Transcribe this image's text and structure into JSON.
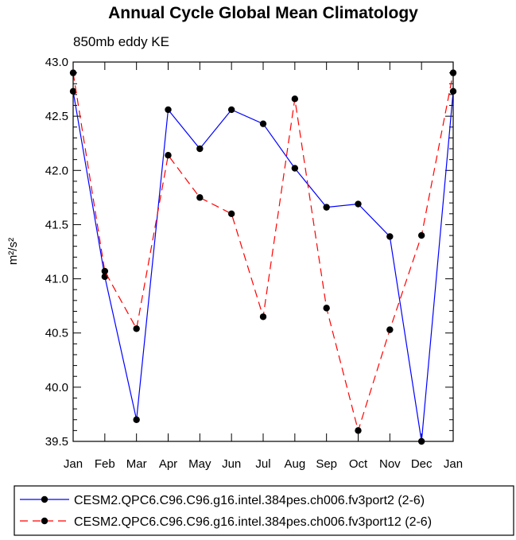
{
  "chart_data": {
    "type": "line",
    "title": "Annual Cycle Global Mean Climatology",
    "subtitle": "850mb eddy KE",
    "ylabel": "m²/s²",
    "xlabel": "",
    "categories": [
      "Jan",
      "Feb",
      "Mar",
      "Apr",
      "May",
      "Jun",
      "Jul",
      "Aug",
      "Sep",
      "Oct",
      "Nov",
      "Dec",
      "Jan"
    ],
    "ylim": [
      39.5,
      43.0
    ],
    "yticks": [
      "39.5",
      "40.0",
      "40.5",
      "41.0",
      "41.5",
      "42.0",
      "42.5",
      "43.0"
    ],
    "grid": false,
    "legend_position": "bottom",
    "series": [
      {
        "name": "CESM2.QPC6.C96.C96.g16.intel.384pes.ch006.fv3port2 (2-6)",
        "color": "#0000ff",
        "style": "solid",
        "values": [
          42.73,
          41.02,
          39.7,
          42.56,
          42.2,
          42.56,
          42.43,
          42.02,
          41.66,
          41.69,
          41.39,
          39.5,
          42.73
        ]
      },
      {
        "name": "CESM2.QPC6.C96.C96.g16.intel.384pes.ch006.fv3port12 (2-6)",
        "color": "#ff0000",
        "style": "dashed",
        "values": [
          42.9,
          41.07,
          40.54,
          42.14,
          41.75,
          41.6,
          40.65,
          42.66,
          40.73,
          39.6,
          40.53,
          41.4,
          42.9
        ]
      }
    ]
  }
}
